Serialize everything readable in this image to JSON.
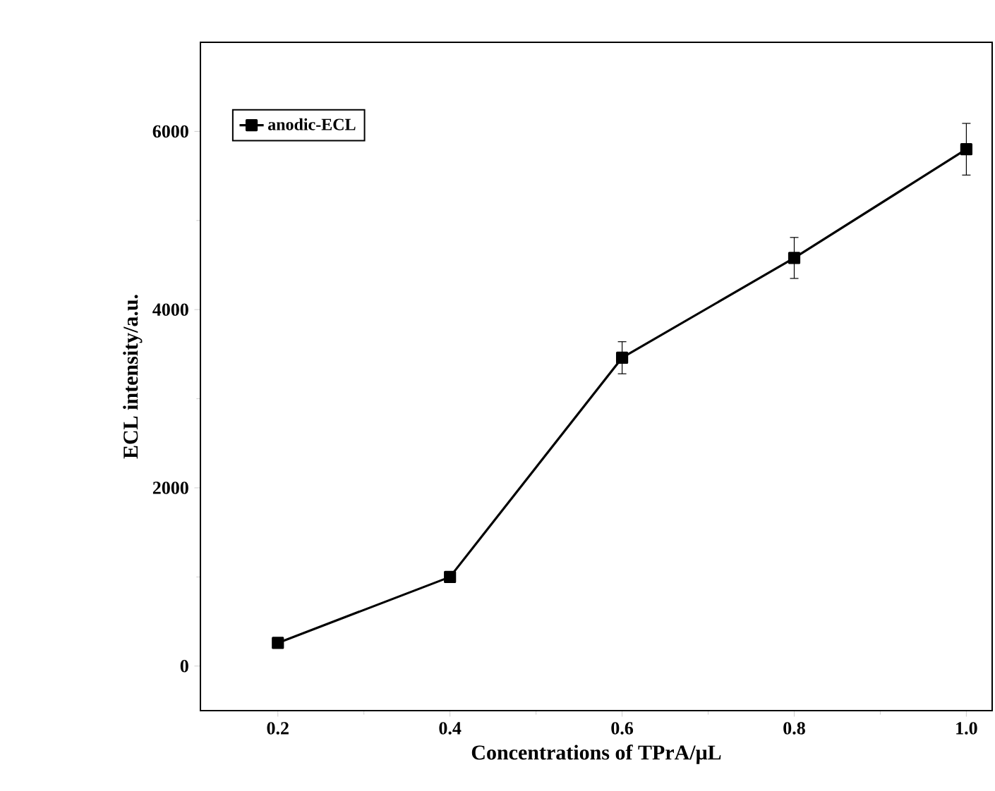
{
  "chart_data": {
    "type": "line",
    "xlabel": "Concentrations of TPrA/μL",
    "ylabel": "ECL intensity/a.u.",
    "x": [
      0.2,
      0.4,
      0.6,
      0.8,
      1.0
    ],
    "series": [
      {
        "name": "anodic-ECL",
        "color": "#000000",
        "values": [
          260,
          1000,
          3460,
          4580,
          5800
        ],
        "errors": [
          null,
          null,
          180,
          230,
          290
        ]
      }
    ],
    "xlim": [
      0.11,
      1.03
    ],
    "ylim": [
      -500,
      7000
    ],
    "xticks": [
      {
        "value": 0.2,
        "label": "0.2"
      },
      {
        "value": 0.4,
        "label": "0.4"
      },
      {
        "value": 0.6,
        "label": "0.6"
      },
      {
        "value": 0.8,
        "label": "0.8"
      },
      {
        "value": 1.0,
        "label": "1.0"
      }
    ],
    "yticks": [
      0,
      2000,
      4000,
      6000
    ],
    "marker": "square",
    "line_style": "solid",
    "legend": "top left",
    "grid": false
  }
}
